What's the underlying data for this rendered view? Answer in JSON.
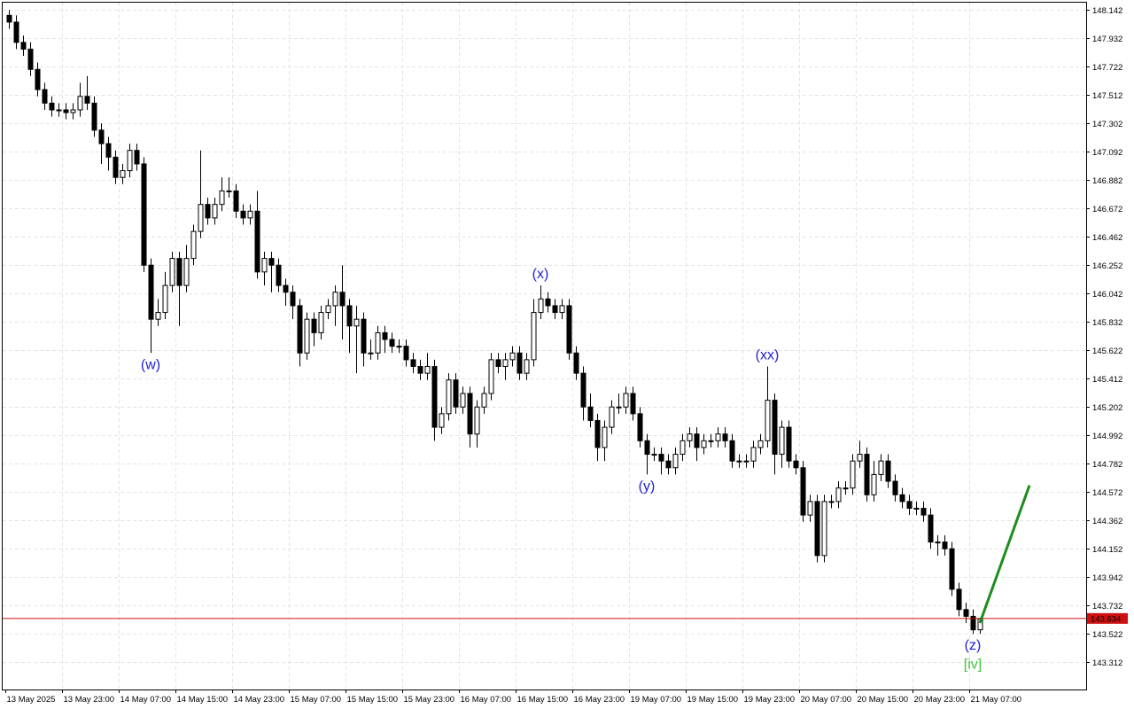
{
  "chart_data": {
    "type": "candlestick",
    "categories": [
      "13 May 2025",
      null,
      null,
      null,
      null,
      null,
      null,
      null,
      "13 May 23:00",
      null,
      null,
      null,
      null,
      null,
      null,
      null,
      "14 May 07:00",
      null,
      null,
      null,
      null,
      null,
      null,
      null,
      "14 May 15:00",
      null,
      null,
      null,
      null,
      null,
      null,
      null,
      "14 May 23:00",
      null,
      null,
      null,
      null,
      null,
      null,
      null,
      "15 May 07:00",
      null,
      null,
      null,
      null,
      null,
      null,
      null,
      "15 May 15:00",
      null,
      null,
      null,
      null,
      null,
      null,
      null,
      "15 May 23:00",
      null,
      null,
      null,
      null,
      null,
      null,
      null,
      "16 May 07:00",
      null,
      null,
      null,
      null,
      null,
      null,
      null,
      "16 May 15:00",
      null,
      null,
      null,
      null,
      null,
      null,
      null,
      "16 May 23:00",
      null,
      null,
      null,
      null,
      null,
      null,
      null,
      "19 May 07:00",
      null,
      null,
      null,
      null,
      null,
      null,
      null,
      "19 May 15:00",
      null,
      null,
      null,
      null,
      null,
      null,
      null,
      "19 May 23:00",
      null,
      null,
      null,
      null,
      null,
      null,
      null,
      "20 May 07:00",
      null,
      null,
      null,
      null,
      null,
      null,
      null,
      "20 May 15:00",
      null,
      null,
      null,
      null,
      null,
      null,
      null,
      "20 May 23:00",
      null,
      null,
      null,
      null,
      null,
      null,
      null,
      "21 May 07:00",
      null
    ],
    "open": [
      148.1,
      148.05,
      147.9,
      147.85,
      147.7,
      147.55,
      147.45,
      147.4,
      147.4,
      147.38,
      147.4,
      147.5,
      147.45,
      147.25,
      147.15,
      147.05,
      146.9,
      146.95,
      147.1,
      147.0,
      146.25,
      145.85,
      145.9,
      146.1,
      146.3,
      146.1,
      146.3,
      146.5,
      146.7,
      146.6,
      146.7,
      146.8,
      146.8,
      146.65,
      146.6,
      146.65,
      146.2,
      146.3,
      146.25,
      146.1,
      146.05,
      145.95,
      145.6,
      145.85,
      145.75,
      145.9,
      145.95,
      146.05,
      145.95,
      145.8,
      145.85,
      145.6,
      145.6,
      145.75,
      145.7,
      145.65,
      145.65,
      145.55,
      145.5,
      145.45,
      145.5,
      145.05,
      145.15,
      145.4,
      145.2,
      145.3,
      145.0,
      145.2,
      145.3,
      145.55,
      145.5,
      145.55,
      145.6,
      145.45,
      145.55,
      145.9,
      146.0,
      145.95,
      145.9,
      145.95,
      145.6,
      145.45,
      145.2,
      145.1,
      144.9,
      145.05,
      145.2,
      145.2,
      145.3,
      145.15,
      144.95,
      144.85,
      144.85,
      144.8,
      144.75,
      144.85,
      144.95,
      145.0,
      144.9,
      144.95,
      144.95,
      145.0,
      144.95,
      144.8,
      144.8,
      144.8,
      144.9,
      144.95,
      145.25,
      144.85,
      145.05,
      144.8,
      144.75,
      144.4,
      144.5,
      144.1,
      144.5,
      144.5,
      144.6,
      144.6,
      144.8,
      144.85,
      144.55,
      144.7,
      144.8,
      144.65,
      144.55,
      144.5,
      144.45,
      144.45,
      144.4,
      144.2,
      144.2,
      144.15,
      143.85,
      143.7,
      143.65,
      143.55
    ],
    "high": [
      148.14,
      148.1,
      147.95,
      147.9,
      147.75,
      147.6,
      147.5,
      147.45,
      147.45,
      147.45,
      147.6,
      147.65,
      147.5,
      147.3,
      147.2,
      147.1,
      147.0,
      147.15,
      147.15,
      147.05,
      146.3,
      146.0,
      146.2,
      146.35,
      146.35,
      146.4,
      146.55,
      147.1,
      146.75,
      146.75,
      146.9,
      146.9,
      146.85,
      146.7,
      146.7,
      146.8,
      146.35,
      146.35,
      146.3,
      146.15,
      146.1,
      146.0,
      145.9,
      145.9,
      145.95,
      146.0,
      146.1,
      146.25,
      146.0,
      145.95,
      145.9,
      145.7,
      145.8,
      145.8,
      145.75,
      145.7,
      145.7,
      145.6,
      145.55,
      145.6,
      145.55,
      145.2,
      145.45,
      145.45,
      145.35,
      145.35,
      145.25,
      145.35,
      145.6,
      145.6,
      145.6,
      145.65,
      145.65,
      145.6,
      146.0,
      146.1,
      146.05,
      146.0,
      146.0,
      146.0,
      145.65,
      145.5,
      145.3,
      145.15,
      145.1,
      145.25,
      145.3,
      145.35,
      145.35,
      145.2,
      145.0,
      144.9,
      144.9,
      144.85,
      144.9,
      145.0,
      145.05,
      145.05,
      145.0,
      145.0,
      145.05,
      145.05,
      145.0,
      144.85,
      144.85,
      144.95,
      145.0,
      145.5,
      145.3,
      145.1,
      145.1,
      144.85,
      144.8,
      144.55,
      144.55,
      144.55,
      144.55,
      144.65,
      144.65,
      144.85,
      144.95,
      144.9,
      144.8,
      144.85,
      144.85,
      144.7,
      144.6,
      144.55,
      144.5,
      144.5,
      144.45,
      144.25,
      144.25,
      144.2,
      143.9,
      143.75,
      143.7,
      143.64
    ],
    "low": [
      148.0,
      147.85,
      147.8,
      147.65,
      147.5,
      147.4,
      147.35,
      147.35,
      147.33,
      147.33,
      147.35,
      147.4,
      147.2,
      147.0,
      146.95,
      146.85,
      146.85,
      146.9,
      146.95,
      146.2,
      145.6,
      145.8,
      145.85,
      146.05,
      145.8,
      146.05,
      146.25,
      146.45,
      146.55,
      146.55,
      146.65,
      146.75,
      146.6,
      146.55,
      146.55,
      146.15,
      146.1,
      146.05,
      146.05,
      145.95,
      145.85,
      145.5,
      145.55,
      145.65,
      145.7,
      145.85,
      145.8,
      145.7,
      145.6,
      145.45,
      145.5,
      145.55,
      145.55,
      145.6,
      145.6,
      145.6,
      145.5,
      145.45,
      145.4,
      145.4,
      144.95,
      145.0,
      145.1,
      145.15,
      145.15,
      144.9,
      144.9,
      145.15,
      145.25,
      145.45,
      145.4,
      145.5,
      145.4,
      145.4,
      145.5,
      145.85,
      145.9,
      145.85,
      145.85,
      145.55,
      145.4,
      145.1,
      145.05,
      144.8,
      144.8,
      145.0,
      145.15,
      145.15,
      145.1,
      144.9,
      144.7,
      144.8,
      144.7,
      144.7,
      144.7,
      144.8,
      144.9,
      144.8,
      144.85,
      144.9,
      144.9,
      144.9,
      144.75,
      144.75,
      144.75,
      144.75,
      144.85,
      144.9,
      144.7,
      144.75,
      144.75,
      144.7,
      144.35,
      144.35,
      144.05,
      144.05,
      144.45,
      144.45,
      144.55,
      144.55,
      144.75,
      144.5,
      144.5,
      144.65,
      144.6,
      144.5,
      144.45,
      144.4,
      144.4,
      144.35,
      144.15,
      144.1,
      144.1,
      143.8,
      143.65,
      143.6,
      143.52,
      143.52
    ],
    "close": [
      148.05,
      147.9,
      147.85,
      147.7,
      147.55,
      147.45,
      147.4,
      147.4,
      147.38,
      147.4,
      147.5,
      147.45,
      147.25,
      147.15,
      147.05,
      146.9,
      146.95,
      147.1,
      147.0,
      146.25,
      145.85,
      145.9,
      146.1,
      146.3,
      146.1,
      146.3,
      146.5,
      146.7,
      146.6,
      146.7,
      146.8,
      146.8,
      146.65,
      146.6,
      146.65,
      146.2,
      146.3,
      146.25,
      146.1,
      146.05,
      145.95,
      145.6,
      145.85,
      145.75,
      145.9,
      145.95,
      146.05,
      145.95,
      145.8,
      145.85,
      145.6,
      145.6,
      145.75,
      145.7,
      145.65,
      145.65,
      145.55,
      145.5,
      145.45,
      145.5,
      145.05,
      145.15,
      145.4,
      145.2,
      145.3,
      145.0,
      145.2,
      145.3,
      145.55,
      145.5,
      145.55,
      145.6,
      145.45,
      145.55,
      145.9,
      146.0,
      145.95,
      145.9,
      145.95,
      145.6,
      145.45,
      145.2,
      145.1,
      144.9,
      145.05,
      145.2,
      145.2,
      145.3,
      145.15,
      144.95,
      144.85,
      144.85,
      144.8,
      144.75,
      144.85,
      144.95,
      145.0,
      144.9,
      144.95,
      144.95,
      145.0,
      144.95,
      144.8,
      144.8,
      144.8,
      144.9,
      144.95,
      145.25,
      144.85,
      145.05,
      144.8,
      144.75,
      144.4,
      144.5,
      144.1,
      144.5,
      144.5,
      144.6,
      144.6,
      144.8,
      144.85,
      144.55,
      144.7,
      144.8,
      144.65,
      144.55,
      144.5,
      144.45,
      144.45,
      144.4,
      144.2,
      144.2,
      144.15,
      143.85,
      143.7,
      143.65,
      143.55,
      143.63
    ],
    "bull_color": "#ffffff",
    "bear_color": "#000000",
    "edge_color": "#000000",
    "ylim": [
      143.108,
      148.194
    ],
    "yticks": [
      148.142,
      147.932,
      147.722,
      147.512,
      147.302,
      147.092,
      146.882,
      146.672,
      146.462,
      146.252,
      146.042,
      145.832,
      145.622,
      145.412,
      145.202,
      144.992,
      144.782,
      144.572,
      144.362,
      144.152,
      143.942,
      143.732,
      143.522,
      143.312
    ],
    "grid": true,
    "price_line": {
      "value": 143.634,
      "label": "143.634",
      "color": "#d01010"
    },
    "projection": {
      "start_index": 137,
      "start": 143.6,
      "end_index": 144,
      "end": 144.62,
      "color": "#1e8c1e"
    },
    "annotations": [
      {
        "text": "(w)",
        "index": 20,
        "value": 145.6,
        "position": "below",
        "color": "#2020d0"
      },
      {
        "text": "(x)",
        "index": 75,
        "value": 146.1,
        "position": "above",
        "color": "#2020d0"
      },
      {
        "text": "(y)",
        "index": 90,
        "value": 144.7,
        "position": "below",
        "color": "#2020d0"
      },
      {
        "text": "(xx)",
        "index": 107,
        "value": 145.5,
        "position": "above",
        "color": "#2020d0"
      },
      {
        "text": "(z)",
        "index": 136,
        "value": 143.52,
        "position": "below",
        "color": "#2020d0"
      },
      {
        "text": "[iv]",
        "index": 136,
        "value": 143.38,
        "position": "below",
        "color": "#3cc83c"
      }
    ]
  }
}
